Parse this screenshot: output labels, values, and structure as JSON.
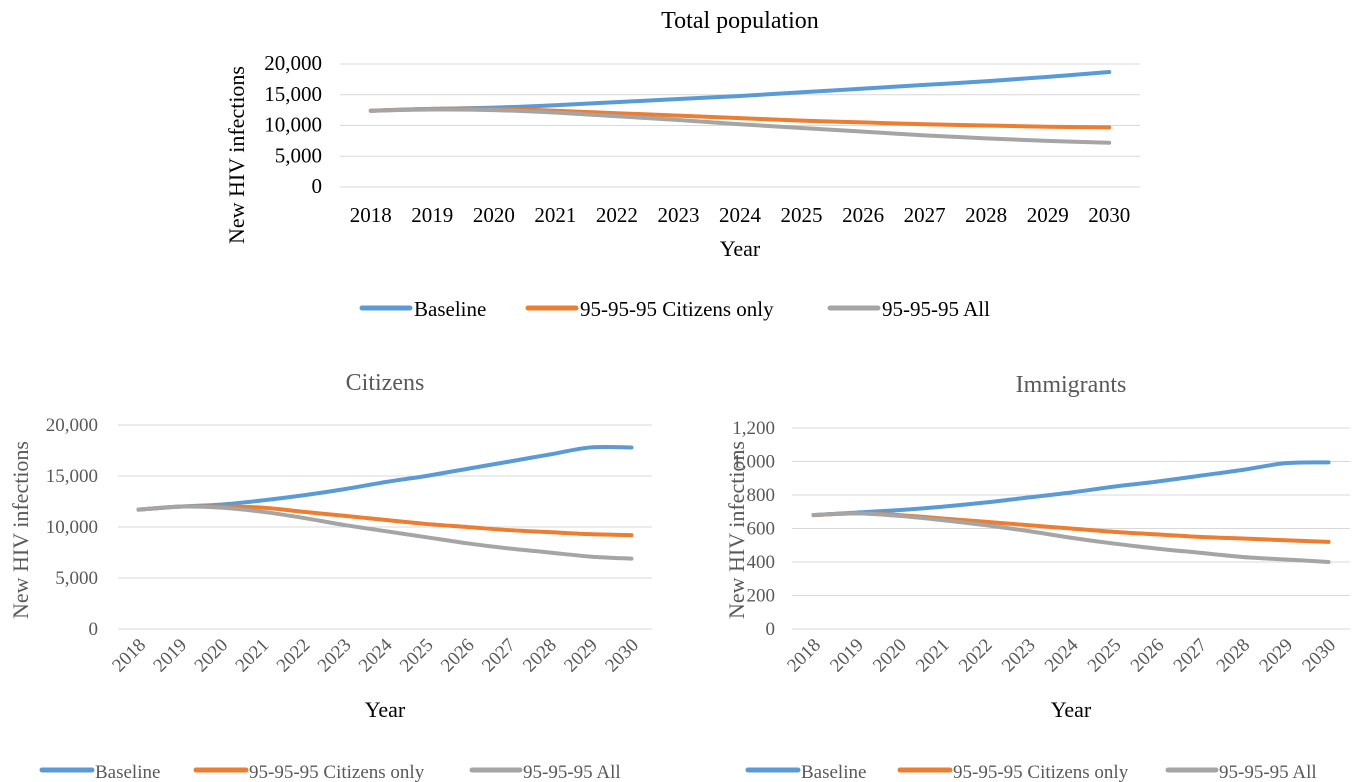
{
  "colors": {
    "baseline": "#5b9bd5",
    "citizens_only": "#ed7d31",
    "all": "#a5a5a5",
    "grid": "#d9d9d9"
  },
  "chart_data": [
    {
      "type": "line",
      "title": "Total population",
      "xlabel": "Year",
      "ylabel": "New HIV infections",
      "x": [
        "2018",
        "2019",
        "2020",
        "2021",
        "2022",
        "2023",
        "2024",
        "2025",
        "2026",
        "2027",
        "2028",
        "2029",
        "2030"
      ],
      "ylim": [
        0,
        20000
      ],
      "yticks": [
        "0",
        "5,000",
        "10,000",
        "15,000",
        "20,000"
      ],
      "ytick_values": [
        0,
        5000,
        10000,
        15000,
        20000
      ],
      "grid": true,
      "legend": "bottom",
      "series": [
        {
          "name": "Baseline",
          "color": "#5b9bd5",
          "values": [
            12400,
            12700,
            12900,
            13300,
            13800,
            14300,
            14800,
            15400,
            16000,
            16600,
            17200,
            17900,
            18700
          ]
        },
        {
          "name": "95-95-95 Citizens only",
          "color": "#ed7d31",
          "values": [
            12400,
            12700,
            12700,
            12400,
            12000,
            11600,
            11200,
            10800,
            10500,
            10200,
            10000,
            9800,
            9700
          ]
        },
        {
          "name": "95-95-95 All",
          "color": "#a5a5a5",
          "values": [
            12400,
            12600,
            12500,
            12100,
            11500,
            10900,
            10200,
            9600,
            9000,
            8400,
            7900,
            7500,
            7200
          ]
        }
      ]
    },
    {
      "type": "line",
      "title": "Citizens",
      "xlabel": "Year",
      "ylabel": "New HIV infections",
      "x": [
        "2018",
        "2019",
        "2020",
        "2021",
        "2022",
        "2023",
        "2024",
        "2025",
        "2026",
        "2027",
        "2028",
        "2029",
        "2030"
      ],
      "ylim": [
        0,
        20000
      ],
      "yticks": [
        "0",
        "5,000",
        "10,000",
        "15,000",
        "20,000"
      ],
      "ytick_values": [
        0,
        5000,
        10000,
        15000,
        20000
      ],
      "grid": true,
      "legend": "bottom",
      "series": [
        {
          "name": "Baseline",
          "color": "#5b9bd5",
          "values": [
            11700,
            12000,
            12200,
            12600,
            13100,
            13700,
            14400,
            15000,
            15700,
            16400,
            17100,
            17800,
            17800
          ]
        },
        {
          "name": "95-95-95 Citizens only",
          "color": "#ed7d31",
          "values": [
            11700,
            12000,
            12000,
            11900,
            11500,
            11100,
            10700,
            10300,
            10000,
            9700,
            9500,
            9300,
            9200
          ]
        },
        {
          "name": "95-95-95 All",
          "color": "#a5a5a5",
          "values": [
            11700,
            12000,
            11900,
            11500,
            10900,
            10200,
            9600,
            9000,
            8400,
            7900,
            7500,
            7100,
            6900
          ]
        }
      ]
    },
    {
      "type": "line",
      "title": "Immigrants",
      "xlabel": "Year",
      "ylabel": "New HIV infections",
      "x": [
        "2018",
        "2019",
        "2020",
        "2021",
        "2022",
        "2023",
        "2024",
        "2025",
        "2026",
        "2027",
        "2028",
        "2029",
        "2030"
      ],
      "ylim": [
        0,
        1200
      ],
      "yticks": [
        "0",
        "200",
        "400",
        "600",
        "800",
        "1,000",
        "1,200"
      ],
      "ytick_values": [
        0,
        200,
        400,
        600,
        800,
        1000,
        1200
      ],
      "grid": true,
      "legend": "bottom",
      "series": [
        {
          "name": "Baseline",
          "color": "#5b9bd5",
          "values": [
            680,
            695,
            710,
            730,
            755,
            785,
            815,
            850,
            880,
            915,
            950,
            990,
            995
          ]
        },
        {
          "name": "95-95-95 Citizens only",
          "color": "#ed7d31",
          "values": [
            680,
            690,
            680,
            660,
            640,
            620,
            600,
            580,
            565,
            550,
            540,
            530,
            520
          ]
        },
        {
          "name": "95-95-95 All",
          "color": "#a5a5a5",
          "values": [
            680,
            690,
            675,
            650,
            620,
            585,
            545,
            510,
            480,
            455,
            430,
            415,
            400
          ]
        }
      ]
    }
  ]
}
